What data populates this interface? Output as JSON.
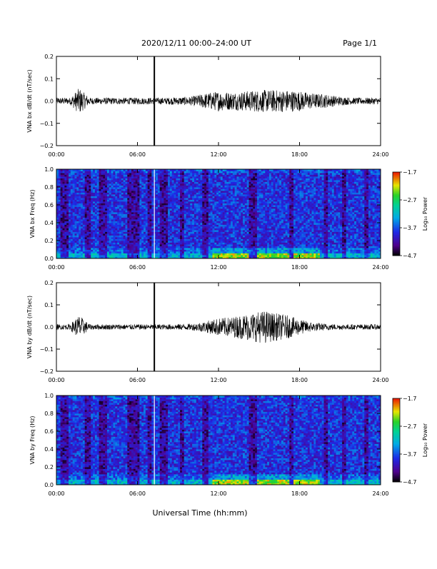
{
  "header": {
    "title": "2020/12/11  00:00–24:00 UT",
    "page": "Page 1/1"
  },
  "xaxis": {
    "label": "Universal Time (hh:mm)",
    "range_hours": [
      0,
      24
    ],
    "tick_hours": [
      0,
      6,
      12,
      18,
      24
    ],
    "tick_labels": [
      "00:00",
      "06:00",
      "12:00",
      "18:00",
      "24:00"
    ]
  },
  "colorbar": {
    "label": "Log₁₀ Power",
    "range": [
      -4.7,
      -1.7
    ],
    "ticks": [
      -1.7,
      -2.7,
      -3.7,
      -4.7
    ],
    "tick_labels": [
      "−1.7",
      "−2.7",
      "−3.7",
      "−4.7"
    ]
  },
  "chart_data": [
    {
      "type": "line",
      "id": "bx-waveform",
      "ylabel": "VNA bx dB/dt (nT/sec)",
      "ylim": [
        -0.2,
        0.2
      ],
      "yticks": [
        -0.2,
        -0.1,
        0.0,
        0.1,
        0.2
      ],
      "ytick_labels": [
        "−0.2",
        "−0.1",
        "0.0",
        "0.1",
        "0.2"
      ],
      "xlim": [
        0,
        24
      ],
      "data_gap_hour": 7.25,
      "envelope_hours": [
        0,
        1,
        1.7,
        2,
        2.5,
        4,
        6,
        8,
        10,
        11,
        12,
        13,
        14,
        15,
        16,
        17,
        18,
        19,
        20,
        21,
        22,
        23,
        24
      ],
      "envelope_amplitude": [
        0.015,
        0.015,
        0.06,
        0.04,
        0.015,
        0.015,
        0.015,
        0.015,
        0.02,
        0.035,
        0.045,
        0.04,
        0.045,
        0.05,
        0.05,
        0.05,
        0.045,
        0.035,
        0.03,
        0.02,
        0.015,
        0.015,
        0.015
      ]
    },
    {
      "type": "heatmap",
      "id": "bx-spectrogram",
      "ylabel": "VNA bx Freq (Hz)",
      "ylim": [
        0,
        1
      ],
      "yticks": [
        0,
        0.2,
        0.4,
        0.6,
        0.8,
        1.0
      ],
      "ytick_labels": [
        "0.0",
        "0.2",
        "0.4",
        "0.6",
        "0.8",
        "1.0"
      ],
      "xlim": [
        0,
        24
      ],
      "zlim": [
        -4.7,
        -1.7
      ],
      "data_gap_hour": 7.25,
      "low_power_bands_hours": [
        [
          0.3,
          0.9
        ],
        [
          2.1,
          2.5
        ],
        [
          3.2,
          3.7
        ],
        [
          5.2,
          6.1
        ],
        [
          6.8,
          7.1
        ],
        [
          7.6,
          8.2
        ],
        [
          9.2,
          9.5
        ],
        [
          10.8,
          11.3
        ],
        [
          14.3,
          14.8
        ],
        [
          17.2,
          17.5
        ],
        [
          19.8,
          20.1
        ],
        [
          21.2,
          21.5
        ],
        [
          22.8,
          23.1
        ]
      ],
      "low_freq_enhancement_hours": [
        [
          11.5,
          19.5
        ]
      ]
    },
    {
      "type": "line",
      "id": "by-waveform",
      "ylabel": "VNA by dB/dt (nT/sec)",
      "ylim": [
        -0.2,
        0.2
      ],
      "yticks": [
        -0.2,
        -0.1,
        0.0,
        0.1,
        0.2
      ],
      "ytick_labels": [
        "−0.2",
        "−0.1",
        "0.0",
        "0.1",
        "0.2"
      ],
      "xlim": [
        0,
        24
      ],
      "data_gap_hour": 7.25,
      "envelope_hours": [
        0,
        1,
        1.7,
        2,
        2.5,
        4,
        6,
        8,
        10,
        11,
        12,
        13,
        14,
        15,
        15.5,
        16,
        17,
        18,
        19,
        20,
        21,
        22,
        23,
        24
      ],
      "envelope_amplitude": [
        0.012,
        0.012,
        0.055,
        0.035,
        0.012,
        0.012,
        0.012,
        0.012,
        0.015,
        0.025,
        0.04,
        0.045,
        0.06,
        0.07,
        0.075,
        0.065,
        0.055,
        0.035,
        0.02,
        0.015,
        0.012,
        0.012,
        0.012,
        0.012
      ]
    },
    {
      "type": "heatmap",
      "id": "by-spectrogram",
      "ylabel": "VNA by Freq (Hz)",
      "ylim": [
        0,
        1
      ],
      "yticks": [
        0,
        0.2,
        0.4,
        0.6,
        0.8,
        1.0
      ],
      "ytick_labels": [
        "0.0",
        "0.2",
        "0.4",
        "0.6",
        "0.8",
        "1.0"
      ],
      "xlim": [
        0,
        24
      ],
      "zlim": [
        -4.7,
        -1.7
      ],
      "data_gap_hour": 7.25,
      "low_power_bands_hours": [
        [
          0.3,
          0.9
        ],
        [
          2.1,
          2.5
        ],
        [
          3.2,
          3.7
        ],
        [
          5.2,
          6.1
        ],
        [
          6.8,
          7.1
        ],
        [
          7.6,
          8.2
        ],
        [
          9.2,
          9.5
        ],
        [
          10.8,
          11.3
        ],
        [
          14.3,
          14.8
        ],
        [
          17.2,
          17.5
        ],
        [
          19.8,
          20.1
        ],
        [
          21.2,
          21.5
        ],
        [
          22.8,
          23.1
        ]
      ],
      "low_freq_enhancement_hours": [
        [
          11.5,
          19.5
        ]
      ]
    }
  ]
}
